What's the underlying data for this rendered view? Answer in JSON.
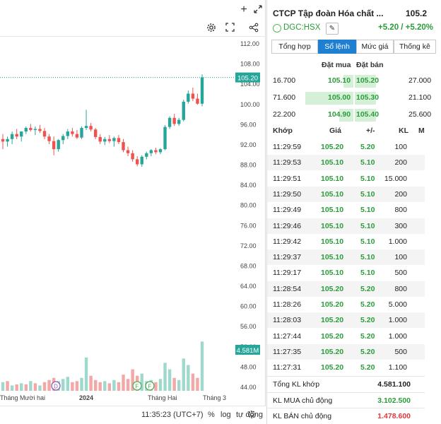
{
  "chart_toolbar": {
    "plus_icon": "plus-icon",
    "expand_icon": "expand-arrows-icon",
    "settings_icon": "gear-icon",
    "fullscreen_icon": "fullscreen-icon",
    "share_icon": "share-icon"
  },
  "chart_data": {
    "type": "candlestick",
    "ylim": [
      43,
      113
    ],
    "y_ticks": [
      "112.00",
      "108.00",
      "104.00",
      "100.00",
      "96.00",
      "92.00",
      "88.00",
      "84.00",
      "80.00",
      "76.00",
      "72.00",
      "68.00",
      "64.00",
      "60.00",
      "56.00",
      "52.00",
      "48.00",
      "44.00"
    ],
    "last_price_label": "105.20",
    "volume_label": "4.581M",
    "x_labels": [
      "Tháng Mười hai",
      "2024",
      "Tháng Hai",
      "Tháng 3"
    ],
    "event_markers": [
      "D",
      "F",
      "F"
    ],
    "candles": [
      [
        93,
        94,
        91,
        92.5
      ],
      [
        92.5,
        93.5,
        91.5,
        93
      ],
      [
        93,
        94.5,
        92,
        94
      ],
      [
        94,
        95,
        93,
        93.5
      ],
      [
        93.5,
        94.5,
        92.5,
        94.5
      ],
      [
        94.5,
        95.5,
        94,
        95.2
      ],
      [
        95.2,
        96,
        94.5,
        94.8
      ],
      [
        94.8,
        95.5,
        93.8,
        95
      ],
      [
        95,
        95.8,
        94.2,
        94.6
      ],
      [
        94.6,
        95.2,
        93,
        93.5
      ],
      [
        93.5,
        94,
        92,
        92.6
      ],
      [
        92.6,
        93.5,
        89.8,
        91
      ],
      [
        91,
        93,
        90.5,
        92.8
      ],
      [
        92.8,
        94,
        92,
        93.6
      ],
      [
        93.6,
        95,
        93,
        94.5
      ],
      [
        94.5,
        95.2,
        93.5,
        94
      ],
      [
        94,
        94.8,
        93,
        93.3
      ],
      [
        93.3,
        95.5,
        93,
        95.2
      ],
      [
        95.2,
        98.8,
        94.8,
        95.6
      ],
      [
        95.6,
        96.2,
        94.5,
        94.9
      ],
      [
        94.9,
        95.2,
        93,
        93.4
      ],
      [
        93.4,
        94,
        92,
        92.5
      ],
      [
        92.5,
        93.4,
        91.8,
        93
      ],
      [
        93,
        93.8,
        92.2,
        92.6
      ],
      [
        92.6,
        93.5,
        91.5,
        93.2
      ],
      [
        93.2,
        93.8,
        92,
        92.4
      ],
      [
        92.4,
        93,
        90.4,
        90.8
      ],
      [
        90.8,
        91.5,
        89.6,
        90.2
      ],
      [
        90.2,
        90.8,
        88.5,
        89
      ],
      [
        89,
        89.6,
        87.6,
        88
      ],
      [
        88,
        89.8,
        87.5,
        89.5
      ],
      [
        89.5,
        90.5,
        89,
        90.2
      ],
      [
        90.2,
        91,
        89.6,
        90.8
      ],
      [
        90.8,
        91.3,
        90,
        90.4
      ],
      [
        90.4,
        91.2,
        90,
        91
      ],
      [
        91,
        95.8,
        90.8,
        95.4
      ],
      [
        95.4,
        97.5,
        95,
        97.2
      ],
      [
        97.2,
        98,
        95.6,
        96
      ],
      [
        96,
        97.2,
        95.6,
        96.8
      ],
      [
        96.8,
        100.8,
        96.5,
        100.4
      ],
      [
        100.4,
        102.6,
        100,
        102
      ],
      [
        102,
        103.2,
        100.5,
        101
      ],
      [
        101,
        102,
        99.8,
        100
      ],
      [
        100,
        105.8,
        99.5,
        105.2
      ]
    ],
    "volumes": [
      [
        0.8,
        "up"
      ],
      [
        0.9,
        "down"
      ],
      [
        0.5,
        "up"
      ],
      [
        0.6,
        "down"
      ],
      [
        0.7,
        "up"
      ],
      [
        0.6,
        "down"
      ],
      [
        0.9,
        "up"
      ],
      [
        0.7,
        "down"
      ],
      [
        0.5,
        "up"
      ],
      [
        0.8,
        "down"
      ],
      [
        1.0,
        "down"
      ],
      [
        1.2,
        "down"
      ],
      [
        0.9,
        "up"
      ],
      [
        1.1,
        "up"
      ],
      [
        1.3,
        "up"
      ],
      [
        0.8,
        "down"
      ],
      [
        0.9,
        "down"
      ],
      [
        1.2,
        "up"
      ],
      [
        3.1,
        "up"
      ],
      [
        1.4,
        "down"
      ],
      [
        1.0,
        "down"
      ],
      [
        0.8,
        "down"
      ],
      [
        0.9,
        "up"
      ],
      [
        0.7,
        "down"
      ],
      [
        1.0,
        "up"
      ],
      [
        0.8,
        "down"
      ],
      [
        1.5,
        "down"
      ],
      [
        1.1,
        "down"
      ],
      [
        2.0,
        "down"
      ],
      [
        1.4,
        "down"
      ],
      [
        1.6,
        "up"
      ],
      [
        0.9,
        "up"
      ],
      [
        1.0,
        "up"
      ],
      [
        0.8,
        "down"
      ],
      [
        1.1,
        "up"
      ],
      [
        2.6,
        "up"
      ],
      [
        2.0,
        "up"
      ],
      [
        1.2,
        "down"
      ],
      [
        1.0,
        "up"
      ],
      [
        3.0,
        "up"
      ],
      [
        2.4,
        "up"
      ],
      [
        1.6,
        "down"
      ],
      [
        1.2,
        "down"
      ],
      [
        4.581,
        "up"
      ]
    ]
  },
  "chart_footer": {
    "time": "11:35:23 (UTC+7)",
    "percent": "%",
    "log": "log",
    "auto": "tự động",
    "settings_icon": "gear-icon"
  },
  "stock": {
    "title": "CTCP Tập đoàn Hóa chất ...",
    "price": "105.2",
    "ticker": "DGC:HSX",
    "change": "+5.20 / +5.20%"
  },
  "tabs": [
    "Tổng hợp",
    "Sổ lệnh",
    "Mức giá",
    "Thống kê"
  ],
  "orderbook": {
    "header_buy": "Đặt mua",
    "header_sell": "Đặt bán",
    "rows": [
      {
        "vol_buy": "16.700",
        "bid": "105.10",
        "ask": "105.20",
        "vol_sell": "27.000"
      },
      {
        "vol_buy": "71.600",
        "bid": "105.00",
        "ask": "105.30",
        "vol_sell": "21.100"
      },
      {
        "vol_buy": "22.200",
        "bid": "104.90",
        "ask": "105.40",
        "vol_sell": "25.600"
      }
    ]
  },
  "trades": {
    "headers": [
      "Khớp",
      "Giá",
      "+/-",
      "KL",
      "M"
    ],
    "rows": [
      {
        "time": "11:29:59",
        "price": "105.20",
        "change": "5.20",
        "vol": "100"
      },
      {
        "time": "11:29:53",
        "price": "105.10",
        "change": "5.10",
        "vol": "200"
      },
      {
        "time": "11:29:51",
        "price": "105.10",
        "change": "5.10",
        "vol": "15.000"
      },
      {
        "time": "11:29:50",
        "price": "105.10",
        "change": "5.10",
        "vol": "200"
      },
      {
        "time": "11:29:49",
        "price": "105.10",
        "change": "5.10",
        "vol": "800"
      },
      {
        "time": "11:29:46",
        "price": "105.10",
        "change": "5.10",
        "vol": "300"
      },
      {
        "time": "11:29:42",
        "price": "105.10",
        "change": "5.10",
        "vol": "1.000"
      },
      {
        "time": "11:29:37",
        "price": "105.10",
        "change": "5.10",
        "vol": "100"
      },
      {
        "time": "11:29:17",
        "price": "105.10",
        "change": "5.10",
        "vol": "500"
      },
      {
        "time": "11:28:54",
        "price": "105.20",
        "change": "5.20",
        "vol": "800"
      },
      {
        "time": "11:28:26",
        "price": "105.20",
        "change": "5.20",
        "vol": "5.000"
      },
      {
        "time": "11:28:03",
        "price": "105.20",
        "change": "5.20",
        "vol": "1.000"
      },
      {
        "time": "11:27:44",
        "price": "105.20",
        "change": "5.20",
        "vol": "1.000"
      },
      {
        "time": "11:27:35",
        "price": "105.20",
        "change": "5.20",
        "vol": "500"
      },
      {
        "time": "11:27:31",
        "price": "105.20",
        "change": "5.20",
        "vol": "1.100"
      }
    ]
  },
  "summary": [
    {
      "label": "Tổng KL khớp",
      "value": "4.581.100",
      "color": "#222222"
    },
    {
      "label": "KL MUA chủ động",
      "value": "3.102.500",
      "color": "#2a9d3a"
    },
    {
      "label": "KL BÁN chủ động",
      "value": "1.478.600",
      "color": "#e0383e"
    }
  ],
  "colors": {
    "up": "#26a69a",
    "down": "#ef5350",
    "accent": "#1f7fd1",
    "green_text": "#2a9d3a"
  }
}
